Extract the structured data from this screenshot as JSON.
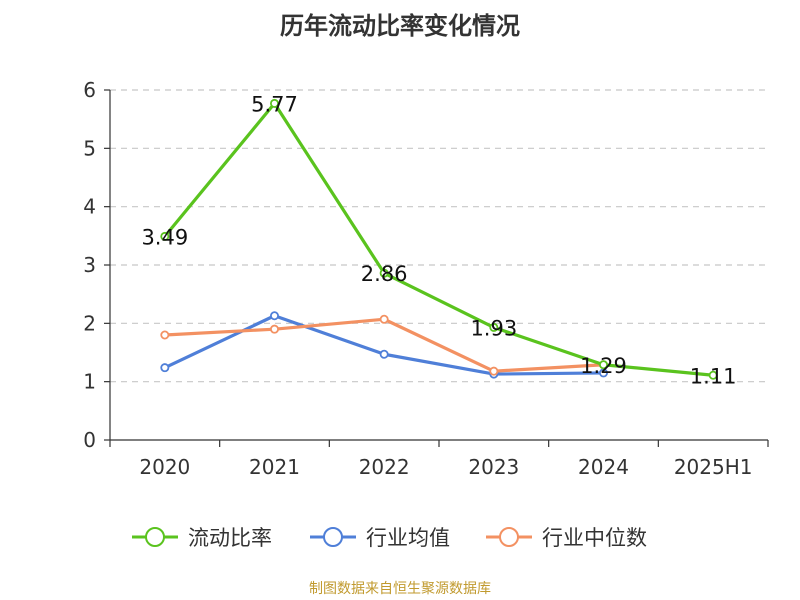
{
  "title": "历年流动比率变化情况",
  "footer": "制图数据来自恒生聚源数据库",
  "colors": {
    "axis": "#333333",
    "grid": "#c8c8c8",
    "footer": "#c19a2e"
  },
  "chart_data": {
    "type": "line",
    "title": "历年流动比率变化情况",
    "categories": [
      "2020",
      "2021",
      "2022",
      "2023",
      "2024",
      "2025H1"
    ],
    "ylim": [
      0,
      6
    ],
    "yticks": [
      0,
      1,
      2,
      3,
      4,
      5,
      6
    ],
    "grid": true,
    "legend_position": "bottom",
    "series": [
      {
        "name": "流动比率",
        "color": "#5ac31e",
        "values": [
          3.49,
          5.77,
          2.86,
          1.93,
          1.29,
          1.11
        ],
        "labels": [
          "3.49",
          "5.77",
          "2.86",
          "1.93",
          "1.29",
          "1.11"
        ]
      },
      {
        "name": "行业均值",
        "color": "#4f7fd8",
        "values": [
          1.24,
          2.13,
          1.47,
          1.13,
          1.15,
          null
        ]
      },
      {
        "name": "行业中位数",
        "color": "#f39162",
        "values": [
          1.8,
          1.9,
          2.07,
          1.18,
          1.29,
          null
        ]
      }
    ]
  }
}
